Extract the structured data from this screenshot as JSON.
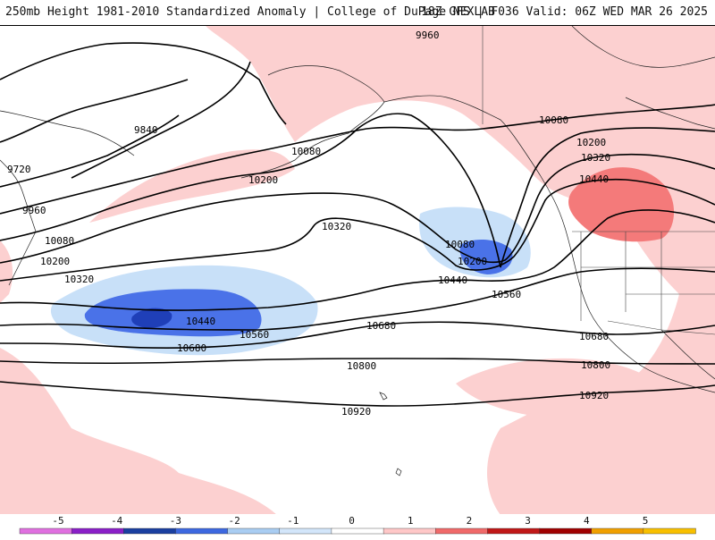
{
  "header": {
    "title": "250mb Height 1981-2010 Standardized Anomaly | College of DuPage NEXLAB",
    "run_info": "18Z GFS | F036 Valid: 06Z WED MAR 26 2025"
  },
  "contour_labels": [
    "9960",
    "9840",
    "9720",
    "9960",
    "10080",
    "10200",
    "10320",
    "10080",
    "10200",
    "10320",
    "10440",
    "10080",
    "10200",
    "10440",
    "10560",
    "10080",
    "10200",
    "10320",
    "10440",
    "10680",
    "10560",
    "10680",
    "10800",
    "10680",
    "10800",
    "10920",
    "10920"
  ],
  "colorbar": {
    "ticks": [
      "-5",
      "-4",
      "-3",
      "-2",
      "-1",
      "0",
      "1",
      "2",
      "3",
      "4",
      "5"
    ],
    "colors": [
      "#e070e0",
      "#8a1fc8",
      "#1a3fa0",
      "#3d68e0",
      "#a9cdf2",
      "#d3e6fa",
      "#ffffff",
      "#ffc8c8",
      "#f06a6a",
      "#c01818",
      "#a00000",
      "#f0a000",
      "#f8c000"
    ]
  },
  "shading": {
    "positive_weak": "#fcd0d0",
    "positive_moderate": "#f47a7a",
    "negative_weak": "#c8e0f8",
    "negative_moderate": "#4a72e8",
    "negative_strong": "#1f3fb8"
  }
}
